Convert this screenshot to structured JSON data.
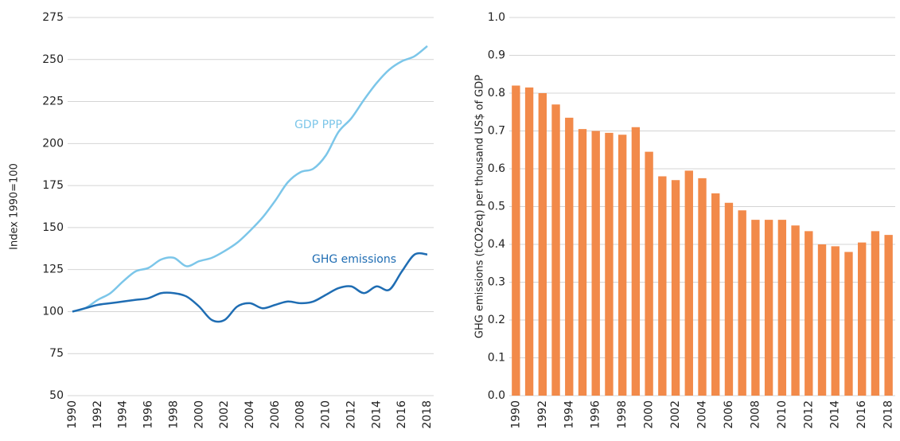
{
  "chart_data": [
    {
      "type": "line",
      "ylabel": "Index 1990=100",
      "x": [
        1990,
        1991,
        1992,
        1993,
        1994,
        1995,
        1996,
        1997,
        1998,
        1999,
        2000,
        2001,
        2002,
        2003,
        2004,
        2005,
        2006,
        2007,
        2008,
        2009,
        2010,
        2011,
        2012,
        2013,
        2014,
        2015,
        2016,
        2017,
        2018
      ],
      "series": [
        {
          "name": "GDP PPP",
          "color": "#7cc6e9",
          "values": [
            100,
            102,
            107,
            111,
            118,
            124,
            126,
            131,
            132,
            127,
            130,
            132,
            136,
            141,
            148,
            156,
            166,
            177,
            183,
            185,
            193,
            207,
            215,
            226,
            236,
            244,
            249,
            252,
            258
          ]
        },
        {
          "name": "GHG emissions",
          "color": "#1f6db3",
          "values": [
            100,
            102,
            104,
            105,
            106,
            107,
            108,
            111,
            111,
            109,
            103,
            95,
            95,
            103,
            105,
            102,
            104,
            106,
            105,
            106,
            110,
            114,
            115,
            111,
            115,
            113,
            124,
            134,
            134
          ]
        }
      ],
      "xlim": [
        1990,
        2018
      ],
      "xticks": [
        1990,
        1992,
        1994,
        1996,
        1998,
        2000,
        2002,
        2004,
        2006,
        2008,
        2010,
        2012,
        2014,
        2016,
        2018
      ],
      "ylim": [
        50,
        275
      ],
      "yticks": [
        50,
        75,
        100,
        125,
        150,
        175,
        200,
        225,
        250,
        275
      ],
      "grid": true
    },
    {
      "type": "bar",
      "ylabel": "GHG emissions (tCO2eq) per thousand US$ of GDP",
      "categories": [
        "1990",
        null,
        "1992",
        null,
        "1994",
        null,
        "1996",
        null,
        "1998",
        null,
        "2000",
        null,
        "2002",
        null,
        "2004",
        null,
        "2006",
        null,
        "2008",
        null,
        "2010",
        null,
        "2012",
        null,
        "2014",
        null,
        "2016",
        null,
        "2018"
      ],
      "values": [
        0.82,
        0.815,
        0.8,
        0.77,
        0.735,
        0.705,
        0.7,
        0.695,
        0.69,
        0.71,
        0.645,
        0.58,
        0.57,
        0.595,
        0.575,
        0.535,
        0.51,
        0.49,
        0.465,
        0.465,
        0.465,
        0.45,
        0.435,
        0.4,
        0.395,
        0.38,
        0.405,
        0.435,
        0.425
      ],
      "color": "#f28a4a",
      "ylim": [
        0,
        1
      ],
      "yticks": [
        {
          "value": 0,
          "label": "0.0"
        },
        0.1,
        0.2,
        0.3,
        0.4,
        0.5,
        0.6,
        0.7,
        0.8,
        0.9,
        {
          "value": 1,
          "label": "1.0"
        }
      ],
      "grid": true
    }
  ]
}
